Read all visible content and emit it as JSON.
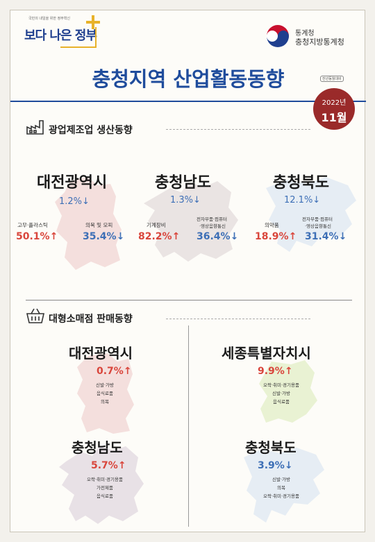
{
  "header": {
    "logo_tagline": "국민의 내일을 위한 정부혁신",
    "logo_text": "보다 나은 정부",
    "agency_line1": "통계청",
    "agency_line2": "충청지방통계청",
    "title": "충청지역 산업활동동향",
    "stamp": "전년동월대비",
    "date_year": "2022년",
    "date_month": "11월"
  },
  "production": {
    "section_title": "광업제조업 생산동향",
    "regions": [
      {
        "name": "대전광역시",
        "total": "1.2%↓",
        "up_label": "고무·플라스틱",
        "up_value": "50.1%↑",
        "down_label": "의복 및 모피",
        "down_value": "35.4%↓"
      },
      {
        "name": "충청남도",
        "total": "1.3%↓",
        "up_label": "기계장비",
        "up_value": "82.2%↑",
        "down_label_1": "전자부품·컴퓨터",
        "down_label_2": "·영상음향통신",
        "down_value": "36.4%↓"
      },
      {
        "name": "충청북도",
        "total": "12.1%↓",
        "up_label": "의약품",
        "up_value": "18.9%↑",
        "down_label_1": "전자부품·컴퓨터",
        "down_label_2": "·영상음향통신",
        "down_value": "31.4%↓"
      }
    ]
  },
  "retail": {
    "section_title": "대형소매점 판매동향",
    "regions": [
      {
        "name": "대전광역시",
        "value": "0.7%↑",
        "items": [
          "신발·가방",
          "음식료품",
          "의복"
        ]
      },
      {
        "name": "세종특별자치시",
        "value": "9.9%↑",
        "items": [
          "오락·취미·경기용품",
          "신발·가방",
          "음식료품"
        ]
      },
      {
        "name": "충청남도",
        "value": "5.7%↑",
        "items": [
          "오락·취미·경기용품",
          "가전제품",
          "음식료품"
        ]
      },
      {
        "name": "충청북도",
        "value": "3.9%↓",
        "items": [
          "신발·가방",
          "의복",
          "오락·취미·경기용품"
        ]
      }
    ]
  },
  "colors": {
    "title_blue": "#1f4c9c",
    "up_red": "#d9463c",
    "down_blue": "#3d6fb6",
    "badge_red": "#9a2a2a",
    "logo_yellow": "#e8b22a"
  }
}
